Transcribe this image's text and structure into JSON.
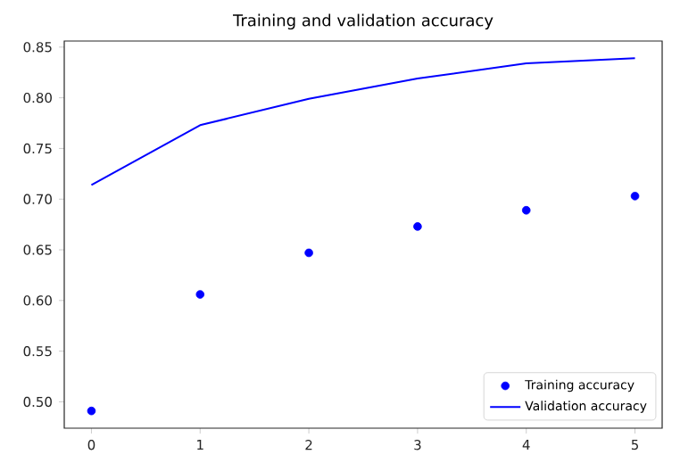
{
  "chart_data": {
    "type": "line",
    "title": "Training and validation accuracy",
    "x": [
      0,
      1,
      2,
      3,
      4,
      5
    ],
    "series": [
      {
        "name": "Training accuracy",
        "type": "scatter",
        "color": "#0000ff",
        "marker": "circle",
        "values": [
          0.491,
          0.606,
          0.647,
          0.673,
          0.689,
          0.703
        ]
      },
      {
        "name": "Validation accuracy",
        "color": "#0000ff",
        "values": [
          0.714,
          0.773,
          0.799,
          0.819,
          0.834,
          0.839
        ]
      }
    ],
    "xlim": [
      -0.25,
      5.25
    ],
    "ylim": [
      0.474,
      0.856
    ],
    "xticks": [
      0,
      1,
      2,
      3,
      4,
      5
    ],
    "yticks": [
      {
        "value": 0.5,
        "label": "0.50"
      },
      {
        "value": 0.55,
        "label": "0.55"
      },
      {
        "value": 0.6,
        "label": "0.60"
      },
      {
        "value": 0.65,
        "label": "0.65"
      },
      {
        "value": 0.7,
        "label": "0.70"
      },
      {
        "value": 0.75,
        "label": "0.75"
      },
      {
        "value": 0.8,
        "label": "0.80"
      },
      {
        "value": 0.85,
        "label": "0.85"
      }
    ],
    "grid": false,
    "legend": "bottom right"
  }
}
